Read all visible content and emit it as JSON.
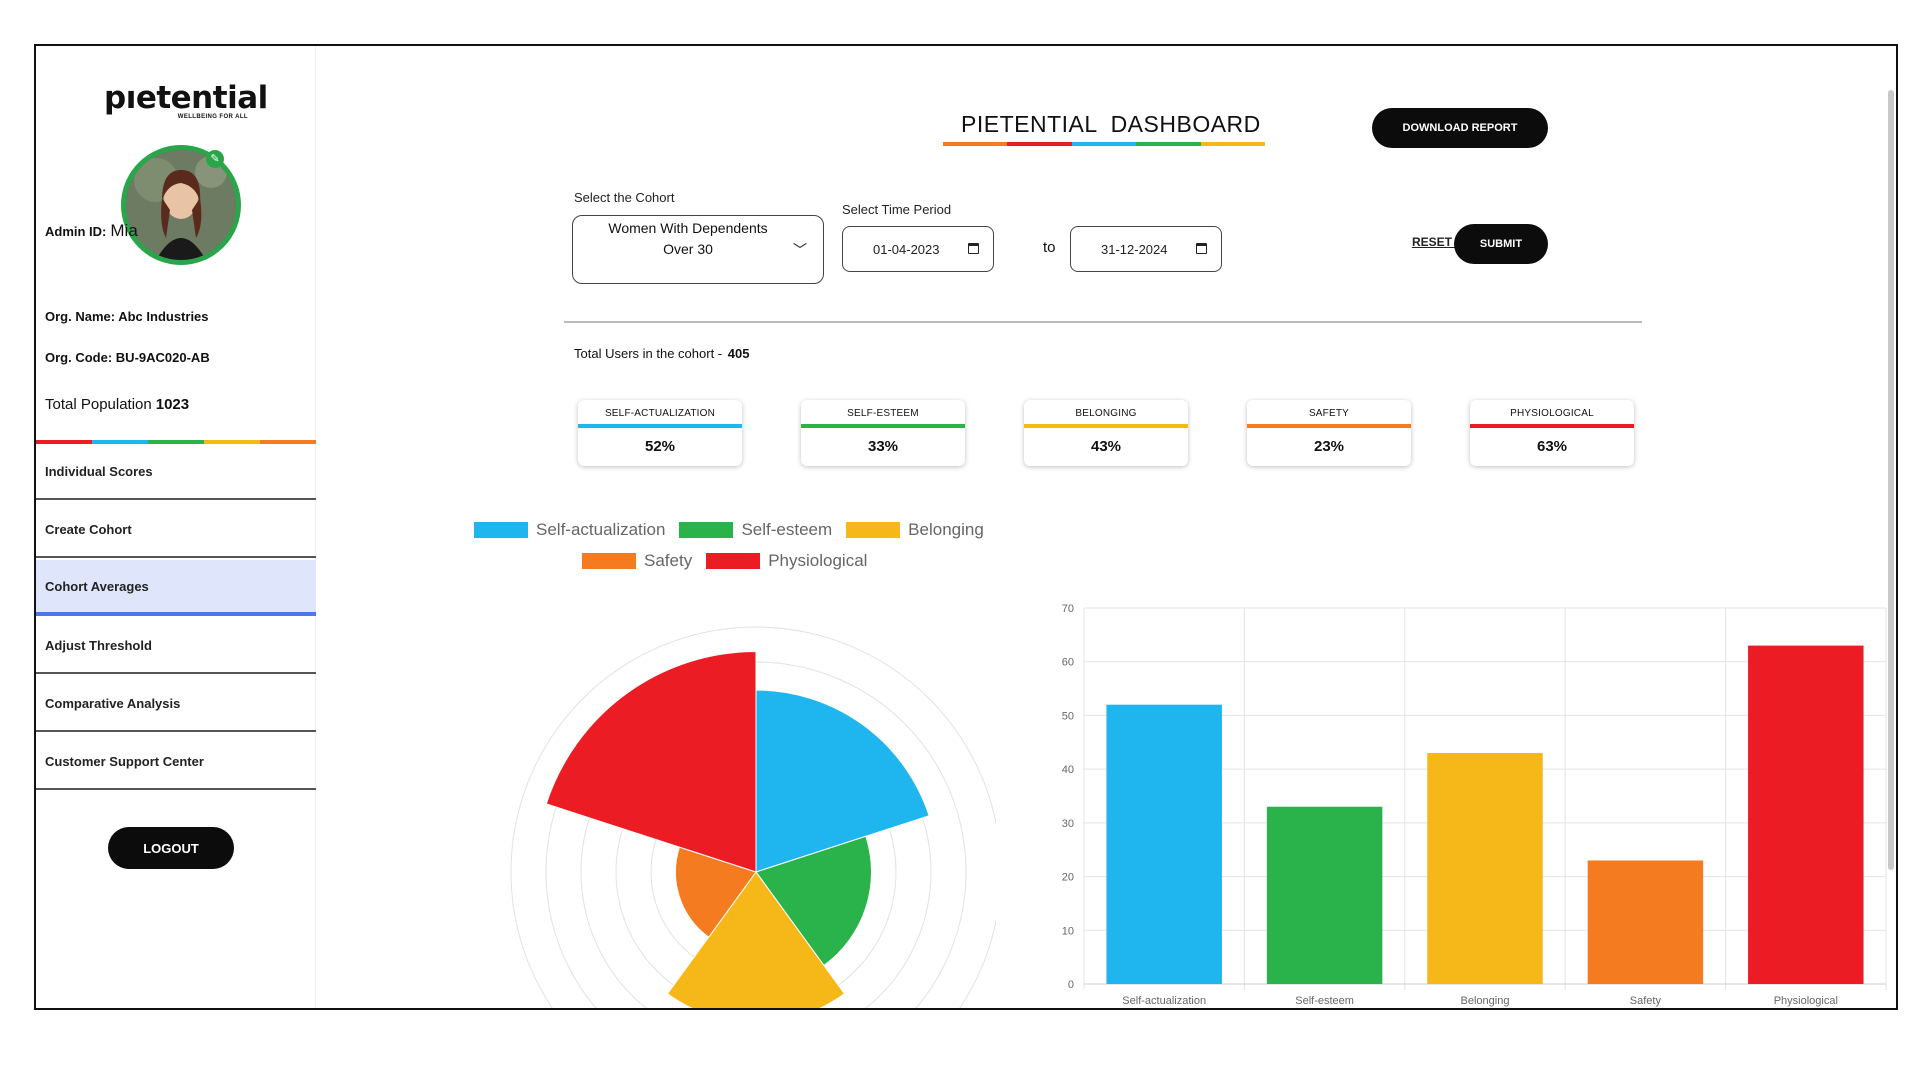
{
  "brand": {
    "name": "pıetential",
    "tagline": "WELLBEING FOR ALL"
  },
  "admin": {
    "id_label": "Admin ID:",
    "id_value": "Mia",
    "org_name_label": "Org. Name:",
    "org_name_value": "Abc Industries",
    "org_code_label": "Org. Code:",
    "org_code_value": "BU-9AC020-AB",
    "population_label": "Total Population",
    "population_value": "1023"
  },
  "nav": [
    {
      "label": "Individual Scores"
    },
    {
      "label": "Create Cohort"
    },
    {
      "label": "Cohort Averages",
      "active": true
    },
    {
      "label": "Adjust Threshold"
    },
    {
      "label": "Comparative Analysis"
    },
    {
      "label": "Customer Support Center"
    }
  ],
  "logout_label": "LOGOUT",
  "header": {
    "title": "PIETENTIAL  DASHBOARD",
    "download_label": "DOWNLOAD REPORT"
  },
  "filters": {
    "cohort_label": "Select the Cohort",
    "cohort_value": "Women With Dependents Over 30",
    "period_label": "Select Time Period",
    "date_from": "01-04-2023",
    "to_label": "to",
    "date_to": "31-12-2024",
    "reset_label": "RESET ALL",
    "submit_label": "SUBMIT"
  },
  "total_users": {
    "label": "Total Users in the cohort - ",
    "value": "405"
  },
  "cards": [
    {
      "label": "SELF-ACTUALIZATION",
      "value": "52%",
      "color": "#1fb5ef"
    },
    {
      "label": "SELF-ESTEEM",
      "value": "33%",
      "color": "#2ab34a"
    },
    {
      "label": "BELONGING",
      "value": "43%",
      "color": "#f5b818"
    },
    {
      "label": "SAFETY",
      "value": "23%",
      "color": "#f47b20"
    },
    {
      "label": "PHYSIOLOGICAL",
      "value": "63%",
      "color": "#ec1c24"
    }
  ],
  "colors": {
    "self_actualization": "#1fb5ef",
    "self_esteem": "#2ab34a",
    "belonging": "#f5b818",
    "safety": "#f47b20",
    "physiological": "#ec1c24",
    "active_nav": "#dfe6fb"
  },
  "chart_data": [
    {
      "type": "polarArea",
      "categories": [
        "Self-actualization",
        "Self-esteem",
        "Belonging",
        "Safety",
        "Physiological"
      ],
      "values": [
        52,
        33,
        43,
        23,
        63
      ],
      "legend": [
        "Self-actualization",
        "Self-esteem",
        "Belonging",
        "Safety",
        "Physiological"
      ],
      "legend_position": "top",
      "rmax": 70,
      "grid": true
    },
    {
      "type": "bar",
      "categories": [
        "Self-actualization",
        "Self-esteem",
        "Belonging",
        "Safety",
        "Physiological"
      ],
      "values": [
        52,
        33,
        43,
        23,
        63
      ],
      "yticks": [
        "0",
        "10",
        "20",
        "30",
        "40",
        "50",
        "60",
        "70"
      ],
      "ylim": [
        0,
        70
      ],
      "grid": true
    }
  ]
}
